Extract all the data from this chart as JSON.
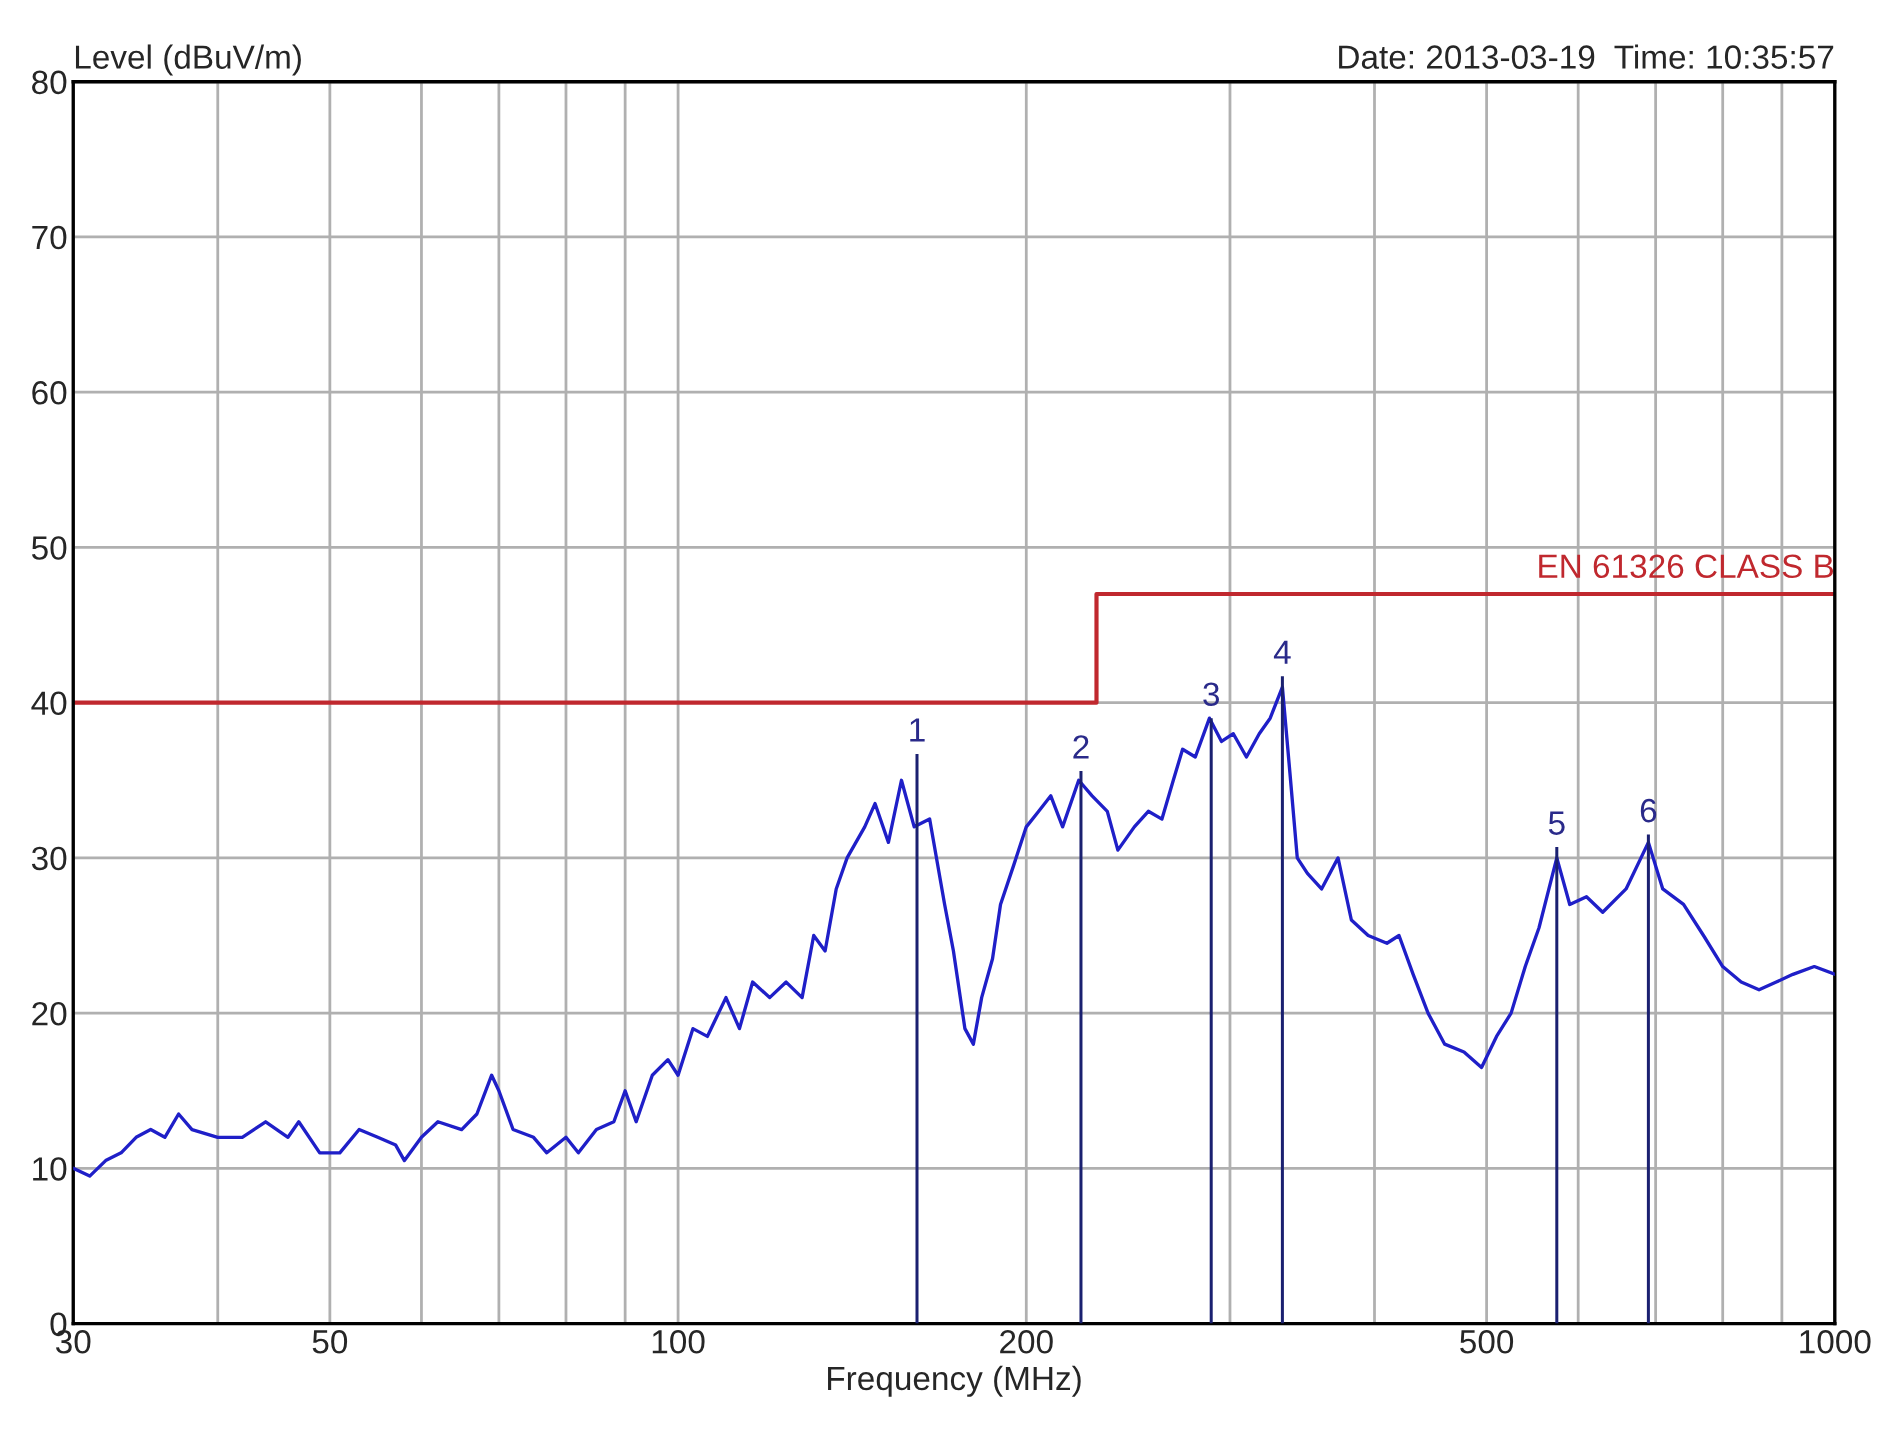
{
  "chart_data": {
    "type": "line",
    "ylabel": "Level (dBuV/m)",
    "xlabel": "Frequency (MHz)",
    "log": "x",
    "grid": true,
    "xlim": [
      30,
      1000
    ],
    "ylim": [
      0,
      80
    ],
    "xticks": [
      30,
      {
        "value": 40,
        "label": null
      },
      50,
      {
        "value": 60,
        "label": null
      },
      {
        "value": 70,
        "label": null
      },
      {
        "value": 80,
        "label": null
      },
      {
        "value": 90,
        "label": null
      },
      100,
      200,
      {
        "value": 300,
        "label": null
      },
      {
        "value": 400,
        "label": null
      },
      500,
      {
        "value": 600,
        "label": null
      },
      {
        "value": 700,
        "label": null
      },
      {
        "value": 800,
        "label": null
      },
      {
        "value": 900,
        "label": null
      },
      1000
    ],
    "yticks": [
      0,
      10,
      20,
      30,
      40,
      50,
      60,
      70,
      80
    ],
    "series": [
      {
        "color": "#1f1fc8",
        "x": [
          30,
          31,
          32,
          33,
          34,
          35,
          36,
          37,
          38,
          40,
          42,
          44,
          46,
          47,
          49,
          51,
          53,
          55,
          57,
          58,
          60,
          62,
          65,
          67,
          69,
          70,
          72,
          75,
          77,
          80,
          82,
          85,
          88,
          90,
          92,
          95,
          98,
          100,
          103,
          106,
          110,
          113,
          116,
          120,
          124,
          128,
          131,
          134,
          137,
          140,
          145,
          148,
          152,
          156,
          160,
          165,
          170,
          173,
          177,
          180,
          183,
          187,
          190,
          195,
          200,
          205,
          210,
          215,
          222,
          228,
          235,
          240,
          248,
          255,
          262,
          268,
          273,
          280,
          288,
          295,
          302,
          310,
          318,
          325,
          333,
          338,
          343,
          350,
          360,
          372,
          382,
          395,
          410,
          420,
          432,
          445,
          460,
          478,
          495,
          510,
          525,
          540,
          555,
          575,
          590,
          610,
          630,
          660,
          690,
          710,
          740,
          770,
          800,
          830,
          860,
          890,
          920,
          960,
          1000
        ],
        "values": [
          10,
          9.5,
          10.5,
          11,
          12,
          12.5,
          12,
          13.5,
          12.5,
          12,
          12,
          13,
          12,
          13,
          11,
          11,
          12.5,
          12,
          11.5,
          10.5,
          12,
          13,
          12.5,
          13.5,
          16,
          15,
          12.5,
          12,
          11,
          12,
          11,
          12.5,
          13,
          15,
          13,
          16,
          17,
          16,
          19,
          18.5,
          21,
          19,
          22,
          21,
          22,
          21,
          25,
          24,
          28,
          30,
          32,
          33.5,
          31,
          35,
          32,
          32.5,
          27,
          24,
          19,
          18,
          21,
          23.5,
          27,
          29.5,
          32,
          33,
          34,
          32,
          35,
          34,
          33,
          30.5,
          32,
          33,
          32.5,
          35,
          37,
          36.5,
          39,
          37.5,
          38,
          36.5,
          38,
          39,
          41,
          35.5,
          30,
          29,
          28,
          30,
          26,
          25,
          24.5,
          25,
          22.5,
          20,
          18,
          17.5,
          16.5,
          18.5,
          20,
          23,
          25.5,
          30,
          27,
          27.5,
          26.5,
          28,
          31,
          28,
          27,
          25,
          23,
          22,
          21.5,
          22,
          22.5,
          23,
          22.5
        ]
      },
      {
        "type": "bar",
        "color": "#1a2070",
        "x": [
          160.9,
          223,
          289,
          333,
          575,
          690
        ],
        "values": [
          36.7,
          35.6,
          39,
          41.7,
          30.7,
          31.5
        ]
      },
      {
        "type": "step",
        "name": "EN 61326 CLASS B",
        "color": "#c0282e",
        "x": [
          30,
          230,
          1000
        ],
        "values": [
          40,
          47,
          47
        ]
      }
    ],
    "annotations": [
      "Date: 2013-03-19  Time: 10:35:57",
      {
        "text": "1",
        "x": 160.9,
        "y": 36.7
      },
      {
        "text": "2",
        "x": 223,
        "y": 35.6
      },
      {
        "text": "3",
        "x": 289,
        "y": 39
      },
      {
        "text": "4",
        "x": 333,
        "y": 41.7
      },
      {
        "text": "5",
        "x": 575,
        "y": 30.7
      },
      {
        "text": "6",
        "x": 690,
        "y": 31.5
      }
    ]
  }
}
